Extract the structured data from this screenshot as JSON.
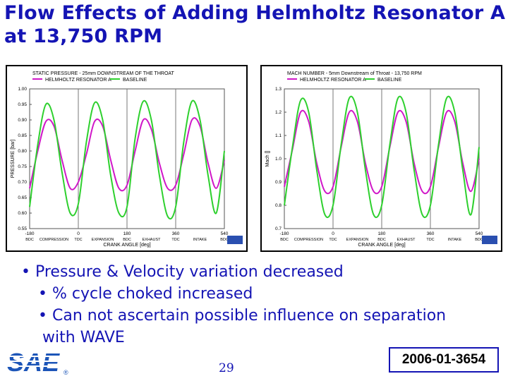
{
  "slide": {
    "title": "Flow Effects of Adding Helmholtz Resonator A at 13,750 RPM",
    "page_number": "29",
    "paper_id": "2006-01-3654",
    "logo_text": "SAE",
    "logo_mark": "®"
  },
  "bullets": {
    "main": "Pressure & Velocity variation decreased",
    "sub1": "% cycle choked increased",
    "sub2_line1": "Can not ascertain possible influence on separation",
    "sub2_line2": "with WAVE"
  },
  "colors": {
    "title_blue": "#1414b4",
    "resonator": "#d018c8",
    "baseline": "#2ed02e"
  },
  "chart_data": [
    {
      "type": "line",
      "title": "STATIC PRESSURE - 25mm DOWNSTREAM OF THE THROAT",
      "ylabel": "PRESSURE [bar]",
      "xlabel": "CRANK ANGLE [deg]",
      "xlim": [
        -180,
        540
      ],
      "ylim": [
        0.55,
        1.0
      ],
      "yticks": [
        "1.00",
        "0.95",
        "0.90",
        "0.85",
        "0.80",
        "0.75",
        "0.70",
        "0.65",
        "0.60",
        "0.55"
      ],
      "xticks": [
        "-180",
        "0",
        "180",
        "360",
        "540"
      ],
      "phase_labels": [
        [
          "BDC",
          "COMPRESSION",
          "TDC",
          "EXPANSION",
          "BDC",
          "EXHAUST",
          "TDC",
          "INTAKE",
          "BDC"
        ]
      ],
      "phase_ranges": [
        [
          -180,
          0
        ],
        [
          0,
          180
        ],
        [
          180,
          360
        ],
        [
          360,
          540
        ]
      ],
      "phase_positions": [
        -180,
        -90,
        0,
        90,
        180,
        270,
        360,
        450,
        540
      ],
      "x": [
        -180,
        -150,
        -120,
        -90,
        -60,
        -30,
        0,
        30,
        60,
        90,
        120,
        150,
        180,
        210,
        240,
        270,
        300,
        330,
        360,
        390,
        420,
        450,
        480,
        510,
        540
      ],
      "series": [
        {
          "name": "HELMHOLTZ RESONATOR A",
          "values": [
            0.68,
            0.8,
            0.895,
            0.88,
            0.77,
            0.68,
            0.7,
            0.79,
            0.895,
            0.88,
            0.77,
            0.68,
            0.69,
            0.8,
            0.9,
            0.87,
            0.76,
            0.68,
            0.69,
            0.79,
            0.9,
            0.88,
            0.76,
            0.68,
            0.77
          ]
        },
        {
          "name": "BASELINE",
          "values": [
            0.62,
            0.82,
            0.95,
            0.9,
            0.73,
            0.6,
            0.63,
            0.83,
            0.955,
            0.9,
            0.72,
            0.6,
            0.62,
            0.84,
            0.96,
            0.9,
            0.72,
            0.59,
            0.62,
            0.83,
            0.96,
            0.9,
            0.72,
            0.6,
            0.8
          ]
        }
      ]
    },
    {
      "type": "line",
      "title": "MACH NUMBER - 5mm Downstream of Throat - 13,750 RPM",
      "ylabel": "Mach []",
      "xlabel": "CRANK ANGLE [deg]",
      "xlim": [
        -180,
        540
      ],
      "ylim": [
        0.7,
        1.3
      ],
      "yticks": [
        "1.3",
        "1.2",
        "1.1",
        "1.0",
        "0.9",
        "0.8",
        "0.7"
      ],
      "xticks": [
        "-180",
        "0",
        "180",
        "360",
        "540"
      ],
      "phase_labels": [
        [
          "BDC",
          "COMPRESSION",
          "TDC",
          "EXPANSION",
          "BDC",
          "EXHAUST",
          "TDC",
          "INTAKE",
          "BDC"
        ]
      ],
      "phase_ranges": [
        [
          -180,
          0
        ],
        [
          0,
          180
        ],
        [
          180,
          360
        ],
        [
          360,
          540
        ]
      ],
      "phase_positions": [
        -180,
        -90,
        0,
        90,
        180,
        270,
        360,
        450,
        540
      ],
      "x": [
        -180,
        -150,
        -120,
        -90,
        -60,
        -30,
        0,
        30,
        60,
        90,
        120,
        150,
        180,
        210,
        240,
        270,
        300,
        330,
        360,
        390,
        420,
        450,
        480,
        510,
        540
      ],
      "series": [
        {
          "name": "HELMHOLTZ RESONATOR A",
          "values": [
            0.88,
            1.04,
            1.2,
            1.16,
            0.98,
            0.86,
            0.88,
            1.05,
            1.2,
            1.16,
            0.98,
            0.86,
            0.88,
            1.05,
            1.2,
            1.16,
            0.98,
            0.86,
            0.88,
            1.05,
            1.2,
            1.16,
            0.98,
            0.86,
            1.0
          ]
        },
        {
          "name": "BASELINE",
          "values": [
            0.8,
            1.05,
            1.25,
            1.2,
            0.95,
            0.76,
            0.8,
            1.06,
            1.26,
            1.2,
            0.95,
            0.76,
            0.8,
            1.06,
            1.26,
            1.2,
            0.95,
            0.76,
            0.8,
            1.06,
            1.26,
            1.2,
            0.95,
            0.76,
            1.05
          ]
        }
      ]
    }
  ]
}
